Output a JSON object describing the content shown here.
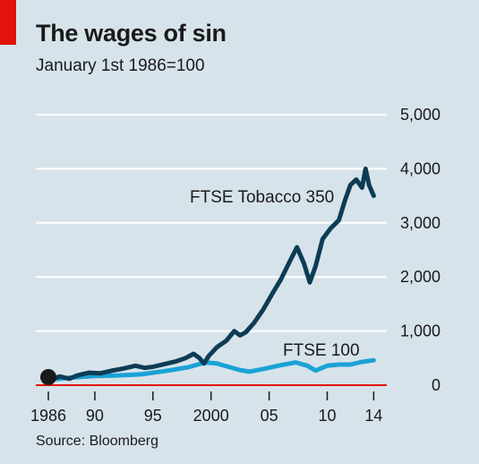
{
  "chart_data": {
    "type": "line",
    "title": "The wages of sin",
    "subtitle": "January 1st 1986=100",
    "source": "Source: Bloomberg",
    "xlim": [
      1986,
      2014.2
    ],
    "ylim": [
      0,
      5000
    ],
    "y_ticks": [
      {
        "value": 0,
        "label": "0"
      },
      {
        "value": 1000,
        "label": "1,000"
      },
      {
        "value": 2000,
        "label": "2,000"
      },
      {
        "value": 3000,
        "label": "3,000"
      },
      {
        "value": 4000,
        "label": "4,000"
      },
      {
        "value": 5000,
        "label": "5,000"
      }
    ],
    "x_ticks": [
      {
        "value": 1986,
        "label": "1986"
      },
      {
        "value": 1990,
        "label": "90"
      },
      {
        "value": 1995,
        "label": "95"
      },
      {
        "value": 2000,
        "label": "2000"
      },
      {
        "value": 2005,
        "label": "05"
      },
      {
        "value": 2010,
        "label": "10"
      },
      {
        "value": 2014,
        "label": "14"
      }
    ],
    "grid": true,
    "series": [
      {
        "name": "FTSE Tobacco 350",
        "color": "#0d3c55",
        "points": [
          [
            1986.0,
            100
          ],
          [
            1987.0,
            160
          ],
          [
            1987.8,
            120
          ],
          [
            1988.5,
            180
          ],
          [
            1989.5,
            230
          ],
          [
            1990.5,
            220
          ],
          [
            1991.5,
            270
          ],
          [
            1992.5,
            310
          ],
          [
            1993.5,
            360
          ],
          [
            1994.3,
            320
          ],
          [
            1995.0,
            340
          ],
          [
            1996.0,
            390
          ],
          [
            1997.0,
            440
          ],
          [
            1997.8,
            500
          ],
          [
            1998.5,
            580
          ],
          [
            1999.0,
            500
          ],
          [
            1999.4,
            400
          ],
          [
            1999.8,
            540
          ],
          [
            2000.5,
            700
          ],
          [
            2001.3,
            820
          ],
          [
            2002.0,
            1000
          ],
          [
            2002.5,
            920
          ],
          [
            2003.0,
            980
          ],
          [
            2003.7,
            1150
          ],
          [
            2004.5,
            1400
          ],
          [
            2005.3,
            1700
          ],
          [
            2006.0,
            1950
          ],
          [
            2006.8,
            2300
          ],
          [
            2007.4,
            2550
          ],
          [
            2008.0,
            2250
          ],
          [
            2008.5,
            1900
          ],
          [
            2009.0,
            2200
          ],
          [
            2009.6,
            2700
          ],
          [
            2010.3,
            2900
          ],
          [
            2011.0,
            3050
          ],
          [
            2011.5,
            3400
          ],
          [
            2012.0,
            3700
          ],
          [
            2012.5,
            3800
          ],
          [
            2013.0,
            3650
          ],
          [
            2013.3,
            4000
          ],
          [
            2013.6,
            3700
          ],
          [
            2014.0,
            3500
          ]
        ]
      },
      {
        "name": "FTSE 100",
        "color": "#1aa2d6",
        "points": [
          [
            1986.0,
            100
          ],
          [
            1988.0,
            140
          ],
          [
            1990.0,
            170
          ],
          [
            1992.0,
            180
          ],
          [
            1994.0,
            200
          ],
          [
            1996.0,
            260
          ],
          [
            1998.0,
            330
          ],
          [
            1999.5,
            420
          ],
          [
            2000.5,
            400
          ],
          [
            2001.5,
            340
          ],
          [
            2002.5,
            280
          ],
          [
            2003.3,
            250
          ],
          [
            2004.5,
            300
          ],
          [
            2006.0,
            370
          ],
          [
            2007.3,
            420
          ],
          [
            2008.3,
            360
          ],
          [
            2009.0,
            270
          ],
          [
            2010.0,
            360
          ],
          [
            2011.0,
            380
          ],
          [
            2012.0,
            380
          ],
          [
            2013.0,
            430
          ],
          [
            2014.0,
            460
          ]
        ]
      }
    ],
    "annotations": {
      "tobacco_label": "FTSE Tobacco 350",
      "ftse_label": "FTSE 100"
    },
    "colors": {
      "background": "#d7e3ea",
      "gridline": "#ffffff",
      "baseline": "#e3120b",
      "accent": "#e3120b",
      "marker": "#1a1a1a"
    }
  }
}
